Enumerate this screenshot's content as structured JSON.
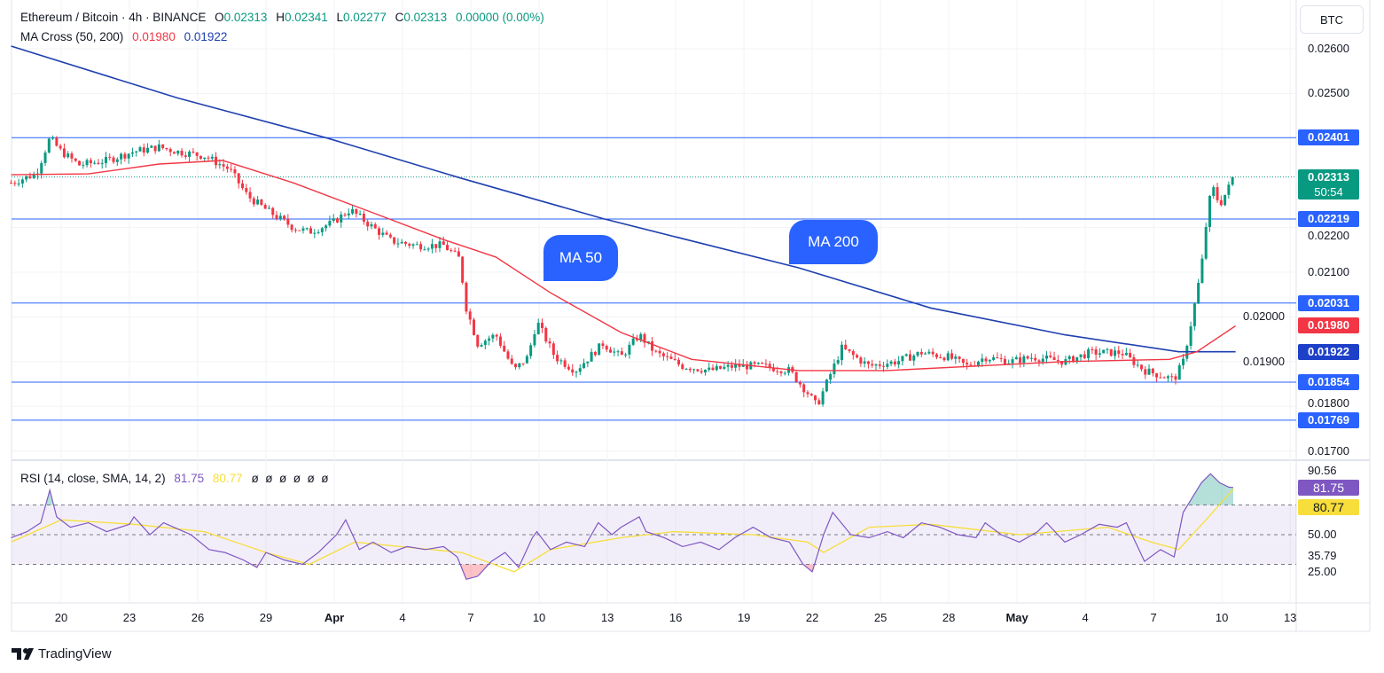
{
  "header": {
    "symbol": "Ethereum / Bitcoin · 4h · BINANCE",
    "o_label": "O",
    "o": "0.02313",
    "h_label": "H",
    "h": "0.02341",
    "l_label": "L",
    "l": "0.02277",
    "c_label": "C",
    "c": "0.02313",
    "change": "0.00000 (0.00%)",
    "ma_label": "MA Cross (50, 200)",
    "ma50": "0.01980",
    "ma200": "0.01922",
    "rsi_label": "RSI (14, close, SMA, 14, 2)",
    "rsi": "81.75",
    "rsi_sma": "80.77",
    "rsi_extra": "ø  ø  ø  ø  ø  ø"
  },
  "currency_button": "BTC",
  "annotations": {
    "ma50": "MA 50",
    "ma200": "MA 200"
  },
  "logo": "TradingView",
  "colors": {
    "up": "#089981",
    "down": "#f23645",
    "ma50": "#f23645",
    "ma200": "#1e40af",
    "levels": "#2962ff",
    "rsi": "#7e57c2",
    "rsi_sma": "#f7de3a"
  },
  "chart_data": {
    "type": "candlestick",
    "title": "Ethereum / Bitcoin · 4h · BINANCE",
    "x_unit": "days since Mar 20",
    "x_ticks": [
      {
        "x": 0,
        "label": "20"
      },
      {
        "x": 3,
        "label": "23"
      },
      {
        "x": 6,
        "label": "26"
      },
      {
        "x": 9,
        "label": "29"
      },
      {
        "x": 12,
        "label": "Apr",
        "bold": true
      },
      {
        "x": 15,
        "label": "4"
      },
      {
        "x": 18,
        "label": "7"
      },
      {
        "x": 21,
        "label": "10"
      },
      {
        "x": 24,
        "label": "13"
      },
      {
        "x": 27,
        "label": "16"
      },
      {
        "x": 30,
        "label": "19"
      },
      {
        "x": 33,
        "label": "22"
      },
      {
        "x": 36,
        "label": "25"
      },
      {
        "x": 39,
        "label": "28"
      },
      {
        "x": 42,
        "label": "May",
        "bold": true
      },
      {
        "x": 45,
        "label": "4"
      },
      {
        "x": 48,
        "label": "7"
      },
      {
        "x": 51,
        "label": "10"
      },
      {
        "x": 54,
        "label": "13"
      }
    ],
    "price_ticks": [
      "0.02600",
      "0.02500",
      "0.02200",
      "0.02100",
      "0.02000",
      "0.01900",
      "0.01800",
      "0.01700"
    ],
    "ylim": [
      0.0168,
      0.027
    ],
    "close_path": [
      [
        -2.2,
        0.023
      ],
      [
        -1.1,
        0.0232
      ],
      [
        -0.5,
        0.024
      ],
      [
        0,
        0.0237
      ],
      [
        0.8,
        0.0234
      ],
      [
        2.0,
        0.0235
      ],
      [
        3.2,
        0.0237
      ],
      [
        4.3,
        0.0238
      ],
      [
        5.1,
        0.0237
      ],
      [
        6.3,
        0.0236
      ],
      [
        7.4,
        0.0233
      ],
      [
        8.2,
        0.0227
      ],
      [
        9.0,
        0.0224
      ],
      [
        10.2,
        0.022
      ],
      [
        10.9,
        0.0219
      ],
      [
        11.9,
        0.0221
      ],
      [
        12.7,
        0.0224
      ],
      [
        13.7,
        0.022
      ],
      [
        14.5,
        0.0217
      ],
      [
        15.6,
        0.0216
      ],
      [
        16.8,
        0.0216
      ],
      [
        17.5,
        0.0213
      ],
      [
        17.8,
        0.0202
      ],
      [
        18.3,
        0.0194
      ],
      [
        19.1,
        0.0196
      ],
      [
        19.9,
        0.0188
      ],
      [
        20.5,
        0.0191
      ],
      [
        20.9,
        0.0199
      ],
      [
        21.7,
        0.0191
      ],
      [
        22.6,
        0.0188
      ],
      [
        23.8,
        0.0194
      ],
      [
        24.6,
        0.0191
      ],
      [
        25.4,
        0.0196
      ],
      [
        26.1,
        0.0192
      ],
      [
        27.3,
        0.0189
      ],
      [
        28.5,
        0.0188
      ],
      [
        29.6,
        0.0189
      ],
      [
        30.8,
        0.0189
      ],
      [
        32.0,
        0.0188
      ],
      [
        32.8,
        0.0183
      ],
      [
        33.2,
        0.018
      ],
      [
        33.7,
        0.0186
      ],
      [
        34.3,
        0.0193
      ],
      [
        35.5,
        0.0189
      ],
      [
        36.7,
        0.019
      ],
      [
        37.8,
        0.0192
      ],
      [
        39.0,
        0.0191
      ],
      [
        39.8,
        0.0189
      ],
      [
        40.6,
        0.0191
      ],
      [
        41.7,
        0.019
      ],
      [
        42.7,
        0.0191
      ],
      [
        44.1,
        0.019
      ],
      [
        45.2,
        0.0192
      ],
      [
        46.6,
        0.0192
      ],
      [
        47.6,
        0.0188
      ],
      [
        48.9,
        0.0186
      ],
      [
        49.3,
        0.019
      ],
      [
        49.7,
        0.02
      ],
      [
        50.1,
        0.0211
      ],
      [
        50.4,
        0.0225
      ],
      [
        50.6,
        0.0229
      ],
      [
        50.9,
        0.0225
      ],
      [
        51.3,
        0.0229
      ],
      [
        51.6,
        0.02313
      ]
    ],
    "ma50": [
      [
        -2.2,
        0.02318
      ],
      [
        1.2,
        0.0232
      ],
      [
        4.3,
        0.02342
      ],
      [
        7.1,
        0.0235
      ],
      [
        10.2,
        0.023
      ],
      [
        13.7,
        0.02233
      ],
      [
        16.8,
        0.02173
      ],
      [
        19.1,
        0.02134
      ],
      [
        21.5,
        0.02054
      ],
      [
        24.6,
        0.01965
      ],
      [
        27.7,
        0.01905
      ],
      [
        32.4,
        0.0188
      ],
      [
        36.3,
        0.0188
      ],
      [
        44.1,
        0.019
      ],
      [
        48.7,
        0.01905
      ],
      [
        49.9,
        0.01922
      ],
      [
        51.6,
        0.0198
      ]
    ],
    "ma200": [
      [
        -2.2,
        0.02606
      ],
      [
        5.1,
        0.0249
      ],
      [
        11.7,
        0.024
      ],
      [
        17.6,
        0.0231
      ],
      [
        23.8,
        0.0222
      ],
      [
        32.4,
        0.0211
      ],
      [
        38.2,
        0.0202
      ],
      [
        44.1,
        0.0196
      ],
      [
        49.1,
        0.01922
      ],
      [
        51.6,
        0.01922
      ]
    ],
    "levels": [
      0.02401,
      0.02219,
      0.02031,
      0.01854,
      0.01769
    ],
    "last_price": {
      "value": "0.02313",
      "countdown": "50:54"
    },
    "rsi": {
      "axis_labels": [
        "90.56",
        "50.00",
        "35.79",
        "25.00"
      ],
      "band": [
        30,
        70
      ],
      "mid": 50,
      "values": [
        [
          -2.2,
          48
        ],
        [
          -1.5,
          52
        ],
        [
          -0.9,
          58
        ],
        [
          -0.5,
          80
        ],
        [
          -0.2,
          62
        ],
        [
          0.4,
          55
        ],
        [
          1.2,
          58
        ],
        [
          2.0,
          52
        ],
        [
          3.0,
          57
        ],
        [
          3.2,
          62
        ],
        [
          3.9,
          50
        ],
        [
          4.5,
          58
        ],
        [
          5.1,
          54
        ],
        [
          5.7,
          50
        ],
        [
          6.5,
          40
        ],
        [
          7.2,
          38
        ],
        [
          8.0,
          33
        ],
        [
          8.6,
          28
        ],
        [
          9.0,
          38
        ],
        [
          9.8,
          33
        ],
        [
          10.6,
          30
        ],
        [
          11.3,
          38
        ],
        [
          12.1,
          50
        ],
        [
          12.5,
          60
        ],
        [
          13.1,
          40
        ],
        [
          13.7,
          45
        ],
        [
          14.5,
          38
        ],
        [
          15.2,
          42
        ],
        [
          16.0,
          40
        ],
        [
          16.8,
          42
        ],
        [
          17.4,
          35
        ],
        [
          17.8,
          20
        ],
        [
          18.3,
          22
        ],
        [
          18.9,
          32
        ],
        [
          19.5,
          38
        ],
        [
          20.1,
          28
        ],
        [
          20.7,
          48
        ],
        [
          20.9,
          52
        ],
        [
          21.5,
          40
        ],
        [
          22.2,
          45
        ],
        [
          23.0,
          42
        ],
        [
          23.6,
          58
        ],
        [
          24.2,
          50
        ],
        [
          24.6,
          55
        ],
        [
          25.4,
          62
        ],
        [
          25.7,
          52
        ],
        [
          26.5,
          48
        ],
        [
          27.3,
          42
        ],
        [
          28.1,
          45
        ],
        [
          28.9,
          40
        ],
        [
          29.6,
          48
        ],
        [
          30.4,
          55
        ],
        [
          31.2,
          48
        ],
        [
          32.0,
          45
        ],
        [
          32.6,
          30
        ],
        [
          33.0,
          25
        ],
        [
          33.5,
          50
        ],
        [
          33.9,
          65
        ],
        [
          34.7,
          50
        ],
        [
          35.5,
          48
        ],
        [
          36.3,
          52
        ],
        [
          37.0,
          48
        ],
        [
          37.8,
          58
        ],
        [
          38.6,
          55
        ],
        [
          39.4,
          50
        ],
        [
          40.2,
          48
        ],
        [
          40.6,
          58
        ],
        [
          41.3,
          50
        ],
        [
          42.1,
          45
        ],
        [
          42.9,
          52
        ],
        [
          43.3,
          58
        ],
        [
          44.1,
          45
        ],
        [
          44.8,
          50
        ],
        [
          45.6,
          57
        ],
        [
          46.4,
          55
        ],
        [
          46.8,
          58
        ],
        [
          47.6,
          32
        ],
        [
          48.3,
          40
        ],
        [
          48.9,
          35
        ],
        [
          49.3,
          65
        ],
        [
          49.7,
          75
        ],
        [
          50.1,
          85
        ],
        [
          50.5,
          91
        ],
        [
          50.9,
          85
        ],
        [
          51.3,
          82
        ],
        [
          51.5,
          81.75
        ]
      ],
      "sma": [
        [
          -2.2,
          45
        ],
        [
          0,
          60
        ],
        [
          3.2,
          57
        ],
        [
          6.3,
          52
        ],
        [
          9.0,
          38
        ],
        [
          10.9,
          30
        ],
        [
          12.9,
          45
        ],
        [
          14.9,
          42
        ],
        [
          17.6,
          38
        ],
        [
          19.9,
          25
        ],
        [
          21.5,
          40
        ],
        [
          24.6,
          48
        ],
        [
          26.9,
          52
        ],
        [
          30.4,
          50
        ],
        [
          32.8,
          45
        ],
        [
          33.5,
          38
        ],
        [
          35.5,
          55
        ],
        [
          38.2,
          57
        ],
        [
          42.1,
          50
        ],
        [
          46.0,
          55
        ],
        [
          47.9,
          45
        ],
        [
          49.1,
          40
        ],
        [
          50.3,
          60
        ],
        [
          51.5,
          80.77
        ]
      ]
    }
  }
}
